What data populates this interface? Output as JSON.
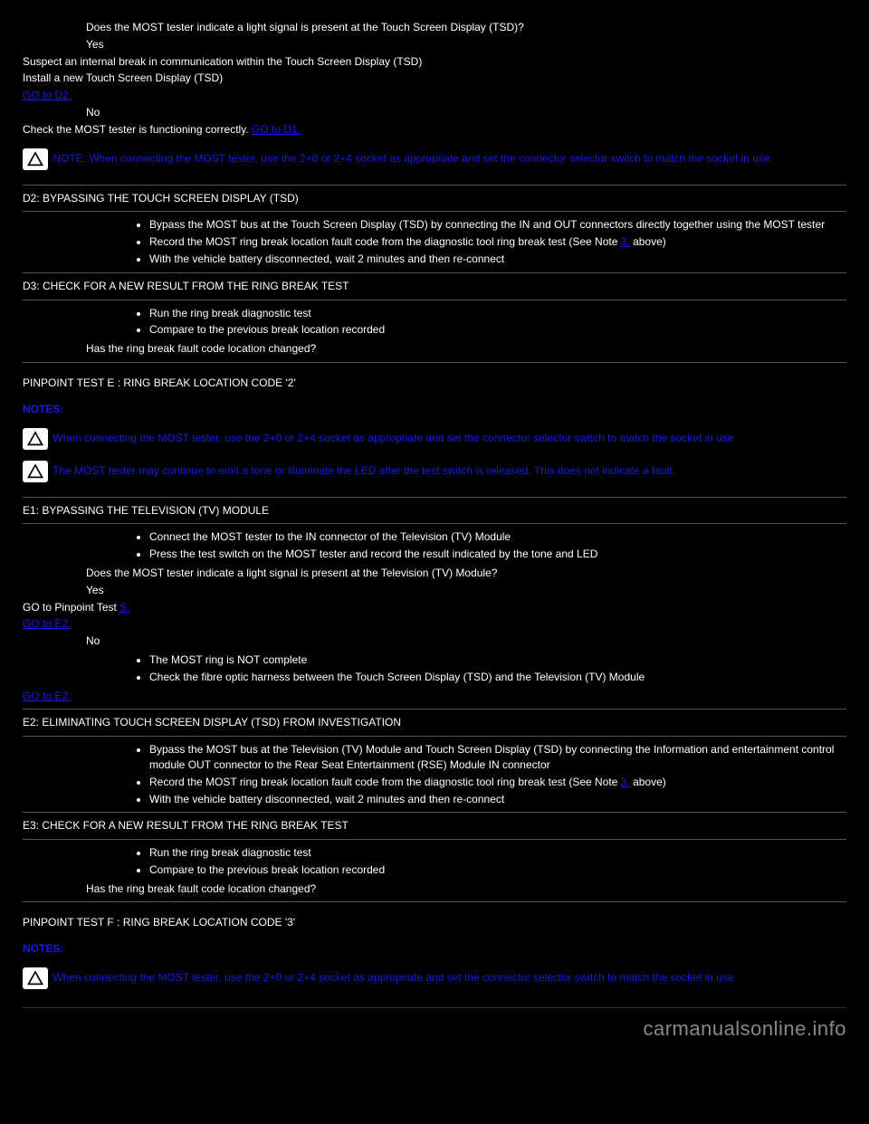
{
  "top": {
    "q": "Does the MOST tester indicate a light signal is present at the Touch Screen Display (TSD)?",
    "yes": "Yes",
    "yes_text_a": "Suspect an internal break in communication within the Touch Screen Display (TSD)",
    "yes_text_b": "Install a new Touch Screen Display (TSD)",
    "yes_goto": "GO to D2.",
    "no": "No",
    "no_text": "Check the MOST tester is functioning correctly. ",
    "no_goto": "GO to D1."
  },
  "note1": "NOTE: When connecting the MOST tester, use the 2+0 or 2+4 socket as appropriate and set the connector selector switch to match the socket in use",
  "d2": {
    "title": "D2: BYPASSING THE TOUCH SCREEN DISPLAY (TSD)",
    "bullets": [
      "Bypass the MOST bus at the Touch Screen Display (TSD) by connecting the IN and OUT connectors directly together using the MOST tester",
      "Record the MOST ring break location fault code from the diagnostic tool ring break test (See Note ",
      "With the vehicle battery disconnected, wait 2 minutes and then re-connect"
    ],
    "link": "3.",
    "tail": " above)"
  },
  "d3": {
    "title": "D3: CHECK FOR A NEW RESULT FROM THE RING BREAK TEST",
    "bullets": [
      "Run the ring break diagnostic test",
      "Compare to the previous break location recorded"
    ],
    "q": "Has the ring break fault code location changed?"
  },
  "pinpointE": {
    "heading": "PINPOINT TEST E : RING BREAK LOCATION CODE '2'",
    "notes_label": "NOTES:",
    "note_a": "When connecting the MOST tester, use the 2+0 or 2+4 socket as appropriate and set the connector selector switch to match the socket in use",
    "note_b": "The MOST tester may continue to emit a tone or illuminate the LED after the test switch is released. This does not indicate a fault.",
    "e1_title": "E1: BYPASSING THE TELEVISION (TV) MODULE",
    "e1_bullets_a": [
      "Connect the MOST tester to the IN connector of the Television (TV) Module",
      "Press the test switch on the MOST tester and record the result indicated by the tone and LED"
    ],
    "e1_q": "Does the MOST tester indicate a light signal is present at the Television (TV) Module?",
    "yes": "Yes",
    "yes_line": "GO to Pinpoint Test ",
    "yes_link": "S.",
    "yes_goto": "GO to E2.",
    "no": "No",
    "no_bullets": [
      "The MOST ring is NOT complete",
      "Check the fibre optic harness between the Touch Screen Display (TSD) and the Television (TV) Module"
    ],
    "no_goto": "GO to E2."
  },
  "e2": {
    "title": "E2: ELIMINATING TOUCH SCREEN DISPLAY (TSD) FROM INVESTIGATION",
    "bullets_a": [
      "Bypass the MOST bus at the Television (TV) Module and Touch Screen Display (TSD) by connecting the Information and entertainment control module OUT connector to the Rear Seat Entertainment (RSE) Module IN connector",
      "Record the MOST ring break location fault code from the diagnostic tool ring break test (See Note ",
      "With the vehicle battery disconnected, wait 2 minutes and then re-connect"
    ],
    "link": "3.",
    "tail": " above)"
  },
  "e3": {
    "title": "E3: CHECK FOR A NEW RESULT FROM THE RING BREAK TEST",
    "bullets": [
      "Run the ring break diagnostic test",
      "Compare to the previous break location recorded"
    ],
    "q": "Has the ring break fault code location changed?"
  },
  "pinpointF": {
    "heading": "PINPOINT TEST F : RING BREAK LOCATION CODE '3'",
    "notes_label": "NOTES:",
    "note_a": "When connecting the MOST tester, use the 2+0 or 2+4 socket as appropriate and set the connector selector switch to match the socket in use"
  },
  "footer": "carmanualsonline.info"
}
